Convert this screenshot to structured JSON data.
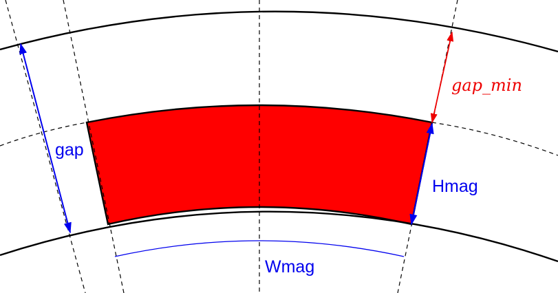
{
  "labels": {
    "gap": "gap",
    "gap_min": "gap_min",
    "hmag": "Hmag",
    "wmag": "Wmag"
  },
  "colors": {
    "magnet_fill": "#ff0000",
    "dimension_blue": "#0000ee",
    "dimension_red": "#ee0000",
    "outline": "#000000",
    "guide": "#000000",
    "background": "#ffffff"
  }
}
